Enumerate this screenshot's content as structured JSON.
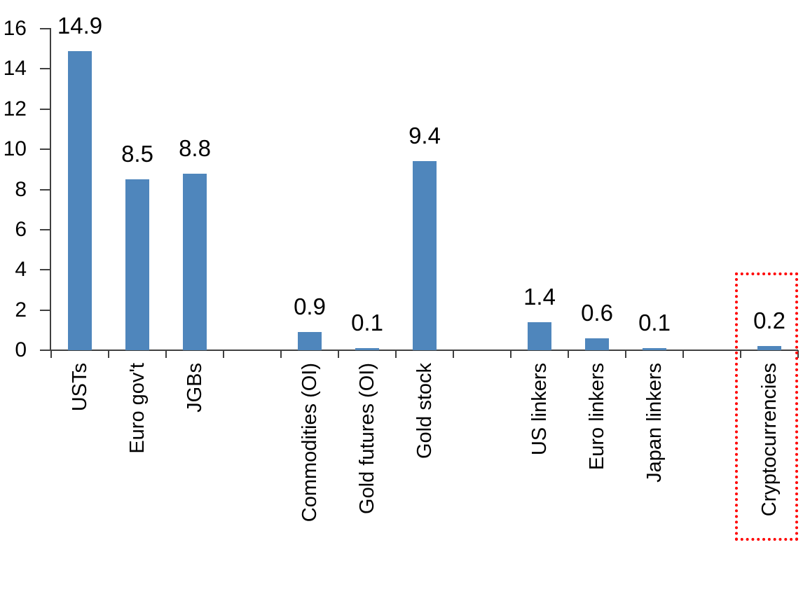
{
  "chart_data": {
    "type": "bar",
    "title": "",
    "xlabel": "",
    "ylabel": "",
    "categories": [
      "USTs",
      "Euro gov't",
      "JGBs",
      "Commodities (OI)",
      "Gold futures (OI)",
      "Gold stock",
      "US linkers",
      "Euro linkers",
      "Japan linkers",
      "Cryptocurrencies"
    ],
    "values": [
      14.9,
      8.5,
      8.8,
      0.9,
      0.1,
      9.4,
      1.4,
      0.6,
      0.1,
      0.2
    ],
    "data_labels": [
      "14.9",
      "8.5",
      "8.8",
      "0.9",
      "0.1",
      "9.4",
      "1.4",
      "0.6",
      "0.1",
      "0.2"
    ],
    "slots": [
      0,
      1,
      2,
      4,
      5,
      6,
      8,
      9,
      10,
      12
    ],
    "total_slots": 13,
    "y_axis": {
      "min": 0,
      "max": 16,
      "step": 2,
      "tick_labels": [
        "0",
        "2",
        "4",
        "6",
        "8",
        "10",
        "12",
        "14",
        "16"
      ]
    },
    "grid": false,
    "legend": false,
    "bar_color": "#4f86bc",
    "axis_color": "#404040",
    "text_color": "#000000",
    "highlight": {
      "category": "Cryptocurrencies",
      "style": "red-dotted-box",
      "color": "#ff0000"
    }
  }
}
